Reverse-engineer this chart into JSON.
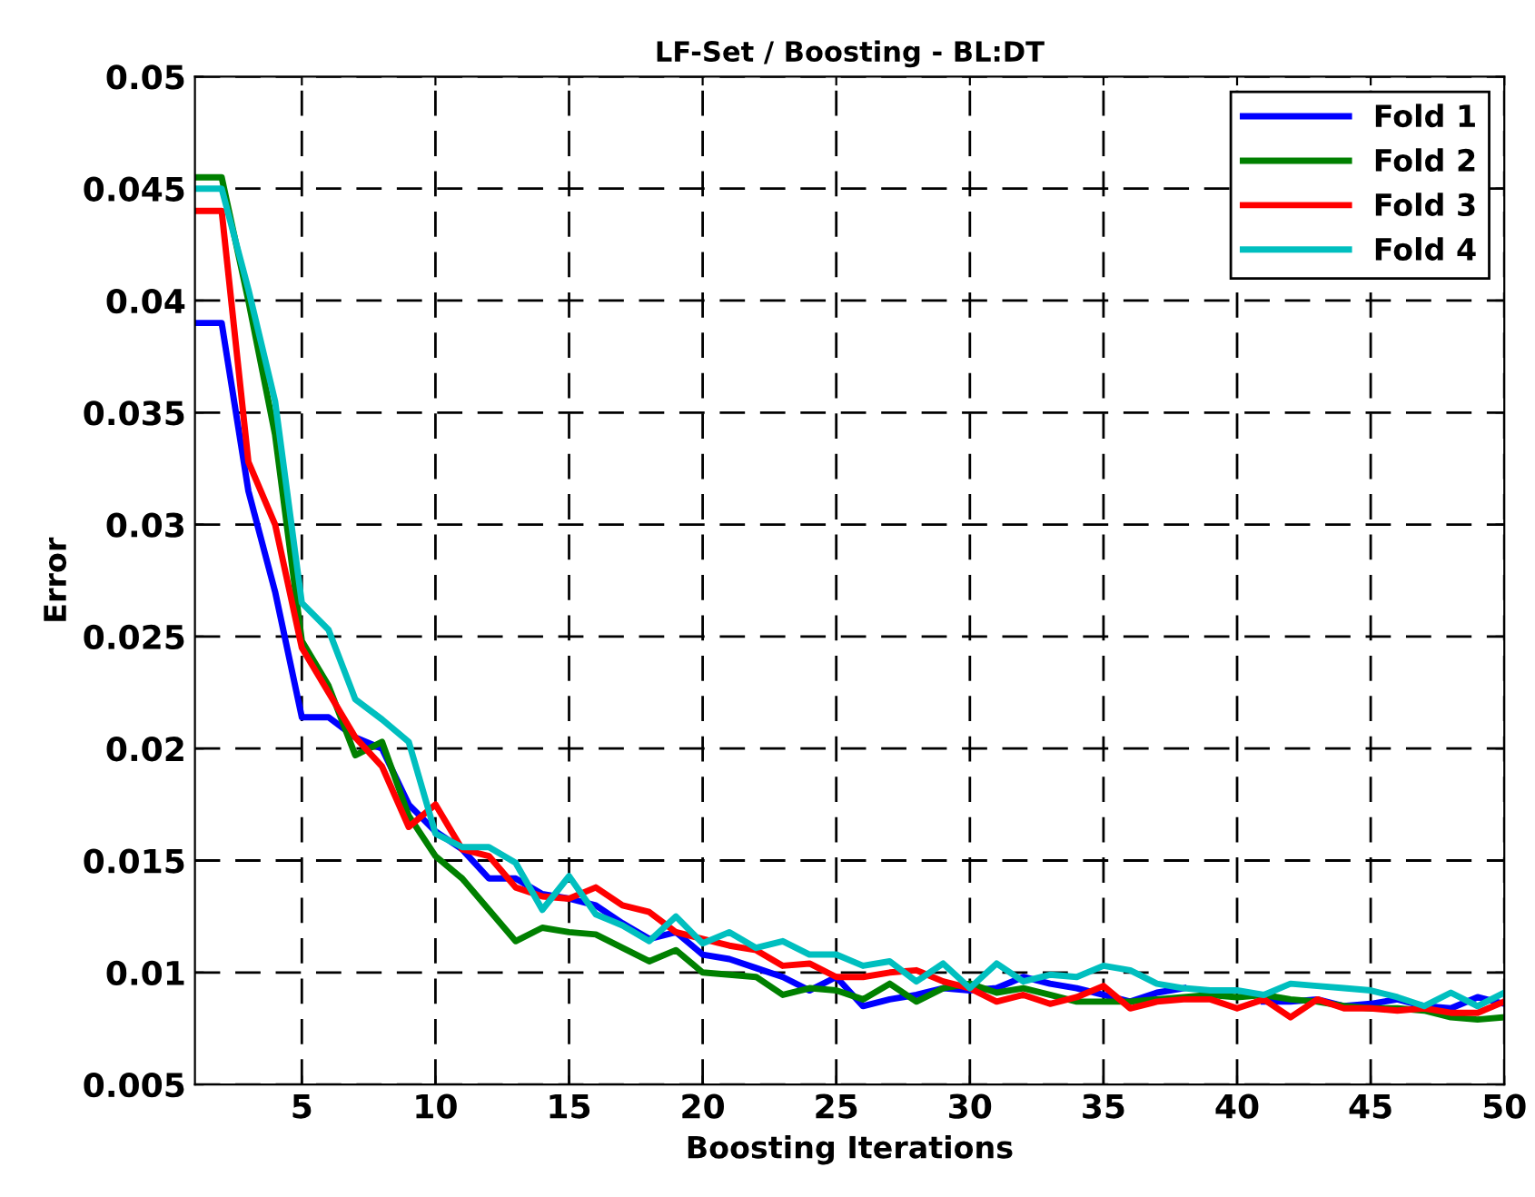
{
  "chart_data": {
    "type": "line",
    "title": "LF-Set / Boosting - BL:DT",
    "xlabel": "Boosting Iterations",
    "ylabel": "Error",
    "x": [
      1,
      2,
      3,
      4,
      5,
      6,
      7,
      8,
      9,
      10,
      11,
      12,
      13,
      14,
      15,
      16,
      17,
      18,
      19,
      20,
      21,
      22,
      23,
      24,
      25,
      26,
      27,
      28,
      29,
      30,
      31,
      32,
      33,
      34,
      35,
      36,
      37,
      38,
      39,
      40,
      41,
      42,
      43,
      44,
      45,
      46,
      47,
      48,
      49,
      50
    ],
    "series": [
      {
        "name": "Fold 1",
        "color": "#0000ff",
        "values": [
          0.039,
          0.039,
          0.0315,
          0.027,
          0.0214,
          0.0214,
          0.0205,
          0.02,
          0.0175,
          0.0163,
          0.0155,
          0.0142,
          0.0142,
          0.0135,
          0.0133,
          0.013,
          0.0122,
          0.0115,
          0.0118,
          0.0108,
          0.0106,
          0.0102,
          0.0098,
          0.0092,
          0.0098,
          0.0085,
          0.0088,
          0.009,
          0.0093,
          0.0092,
          0.0093,
          0.0098,
          0.0095,
          0.0093,
          0.009,
          0.0087,
          0.0091,
          0.0093,
          null,
          null,
          0.0087,
          0.0087,
          0.0088,
          0.0085,
          0.0086,
          0.0088,
          0.0085,
          0.0084,
          0.0089,
          0.0086
        ]
      },
      {
        "name": "Fold 2",
        "color": "#008000",
        "values": [
          0.0455,
          0.0455,
          0.04,
          0.034,
          0.0248,
          0.0228,
          0.0197,
          0.0203,
          0.017,
          0.0152,
          0.0142,
          0.0128,
          0.0114,
          0.012,
          0.0118,
          0.0117,
          0.0111,
          0.0105,
          0.011,
          0.01,
          0.0099,
          0.0098,
          0.009,
          0.0093,
          0.0092,
          0.0088,
          0.0095,
          0.0087,
          0.0093,
          0.0095,
          0.0091,
          0.0093,
          0.009,
          0.0087,
          0.0087,
          0.0087,
          0.0088,
          0.0089,
          0.009,
          0.0089,
          0.009,
          0.0088,
          0.0087,
          0.0085,
          0.0084,
          0.0084,
          0.0083,
          0.008,
          0.0079,
          0.008
        ]
      },
      {
        "name": "Fold 3",
        "color": "#ff0000",
        "values": [
          0.044,
          0.044,
          0.0328,
          0.03,
          0.0245,
          0.0225,
          0.0205,
          0.0192,
          0.0165,
          0.0175,
          0.0155,
          0.0152,
          0.0138,
          0.0134,
          0.0133,
          0.0138,
          0.013,
          0.0127,
          0.0118,
          0.0115,
          0.0112,
          0.011,
          0.0103,
          0.0104,
          0.0098,
          0.0098,
          0.01,
          0.0101,
          0.0096,
          0.0093,
          0.0087,
          0.009,
          0.0086,
          0.0089,
          0.0094,
          0.0084,
          0.0087,
          0.0088,
          0.0088,
          0.0084,
          0.0088,
          0.008,
          0.0088,
          0.0084,
          0.0084,
          0.0083,
          0.0084,
          0.0082,
          0.0082,
          0.0087
        ]
      },
      {
        "name": "Fold 4",
        "color": "#00bfbf",
        "values": [
          0.045,
          0.045,
          0.0405,
          0.0355,
          0.0265,
          0.0253,
          0.0222,
          0.0213,
          0.0203,
          0.0162,
          0.0156,
          0.0156,
          0.0149,
          0.0128,
          0.0143,
          0.0126,
          0.0121,
          0.0114,
          0.0125,
          0.0113,
          0.0118,
          0.0111,
          0.0114,
          0.0108,
          0.0108,
          0.0103,
          0.0105,
          0.0096,
          0.0104,
          0.0093,
          0.0104,
          0.0096,
          0.0099,
          0.0098,
          0.0103,
          0.0101,
          0.0095,
          0.0093,
          0.0092,
          0.0092,
          0.009,
          0.0095,
          0.0094,
          0.0093,
          0.0092,
          0.0089,
          0.0085,
          0.0091,
          0.0085,
          0.0091
        ]
      }
    ],
    "xlim": [
      1,
      50
    ],
    "xticks": [
      5,
      10,
      15,
      20,
      25,
      30,
      35,
      40,
      45,
      50
    ],
    "ylim": [
      0.005,
      0.05
    ],
    "yticks": [
      0.005,
      0.01,
      0.015,
      0.02,
      0.025,
      0.03,
      0.035,
      0.04,
      0.045,
      0.05
    ],
    "grid": true,
    "legend": "top right",
    "marker": "none",
    "line_style": "solid"
  }
}
